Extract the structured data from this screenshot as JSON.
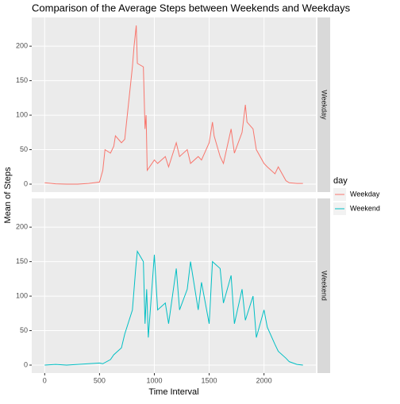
{
  "chart_data": {
    "type": "line",
    "title": "Comparison of the Average Steps between Weekends and Weekdays",
    "xlabel": "Time Interval",
    "ylabel": "Mean of Steps",
    "legend_title": "day",
    "xlim": [
      -118,
      2473
    ],
    "ylim": [
      -11.5,
      241.6
    ],
    "xticks": [
      0,
      500,
      1000,
      1500,
      2000
    ],
    "yticks": [
      0,
      50,
      100,
      150,
      200
    ],
    "grid": true,
    "series": [
      {
        "name": "Weekday",
        "color": "#f8766d",
        "x": [
          0,
          100,
          200,
          300,
          400,
          500,
          530,
          550,
          600,
          630,
          645,
          700,
          730,
          800,
          815,
          835,
          845,
          900,
          915,
          925,
          935,
          1000,
          1030,
          1100,
          1130,
          1200,
          1230,
          1300,
          1330,
          1400,
          1430,
          1500,
          1530,
          1545,
          1600,
          1630,
          1700,
          1730,
          1800,
          1830,
          1845,
          1900,
          1930,
          2000,
          2030,
          2100,
          2130,
          2200,
          2230,
          2300,
          2355
        ],
        "values": [
          2,
          0.5,
          0,
          0,
          1,
          3,
          20,
          50,
          45,
          55,
          70,
          60,
          65,
          170,
          200,
          230,
          175,
          170,
          80,
          100,
          20,
          35,
          30,
          40,
          25,
          60,
          40,
          50,
          30,
          40,
          35,
          60,
          90,
          70,
          40,
          30,
          80,
          45,
          75,
          115,
          90,
          80,
          50,
          30,
          25,
          15,
          25,
          5,
          2,
          1,
          1
        ]
      },
      {
        "name": "Weekend",
        "color": "#00bfc4",
        "x": [
          0,
          100,
          200,
          300,
          400,
          500,
          530,
          600,
          630,
          700,
          730,
          800,
          830,
          845,
          900,
          915,
          930,
          945,
          1000,
          1030,
          1100,
          1130,
          1200,
          1230,
          1300,
          1330,
          1400,
          1430,
          1500,
          1530,
          1600,
          1630,
          1700,
          1730,
          1800,
          1830,
          1900,
          1930,
          2000,
          2030,
          2100,
          2130,
          2200,
          2230,
          2300,
          2355
        ],
        "values": [
          0,
          1,
          0,
          1,
          2,
          3,
          2,
          8,
          15,
          25,
          45,
          80,
          140,
          165,
          150,
          60,
          110,
          40,
          160,
          80,
          90,
          60,
          140,
          80,
          110,
          150,
          80,
          120,
          60,
          150,
          140,
          90,
          130,
          60,
          110,
          65,
          100,
          40,
          80,
          55,
          30,
          20,
          10,
          5,
          1,
          0
        ]
      }
    ]
  }
}
